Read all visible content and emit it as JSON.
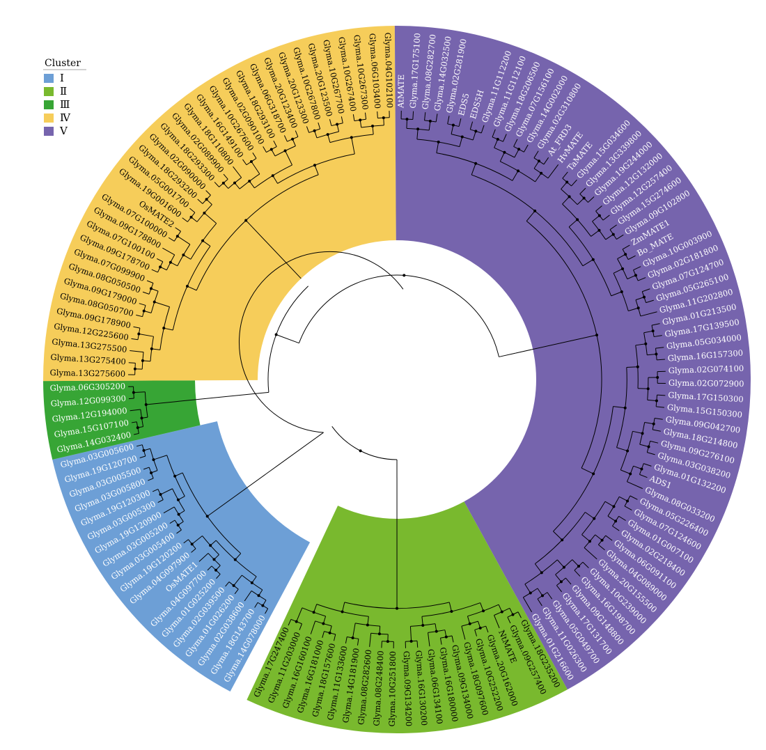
{
  "legend": {
    "title": "Cluster",
    "items": [
      {
        "label": "Ⅰ",
        "color": "#6d9fd6"
      },
      {
        "label": "Ⅱ",
        "color": "#79b92e"
      },
      {
        "label": "Ⅲ",
        "color": "#37a535"
      },
      {
        "label": "Ⅳ",
        "color": "#f6cd5a"
      },
      {
        "label": "Ⅴ",
        "color": "#7664ad"
      }
    ]
  },
  "clusters": [
    {
      "id": "I",
      "color": "#6d9fd6",
      "text_color": "#ffffff",
      "leaves": [
        "Glyma.14G078000",
        "Glyma.18G143700",
        "Glyma.02G038600",
        "Glyma.01G026200",
        "Glyma.02G039500",
        "Glyma.01G025200",
        "Glyma.04G097700",
        "OsMATE1",
        "Glyma.04G097900",
        "Glyma.19G120200",
        "Glyma.03G005400",
        "Glyma.03G005200",
        "Glyma.19G120900",
        "Glyma.03G005300",
        "Glyma.19G120300",
        "Glyma.03G005800",
        "Glyma.03G005500",
        "Glyma.19G120700",
        "Glyma.03G005600"
      ]
    },
    {
      "id": "III",
      "color": "#37a535",
      "text_color": "#ffffff",
      "leaves": [
        "Glyma.14G032400",
        "Glyma.15G107100",
        "Glyma.12G194000",
        "Glyma.12G099300",
        "Glyma.06G305200"
      ]
    },
    {
      "id": "IV",
      "color": "#f6cd5a",
      "text_color": "#000000",
      "leaves": [
        "Glyma.13G275600",
        "Glyma.13G275400",
        "Glyma.13G275500",
        "Glyma.12G225600",
        "Glyma.09G178900",
        "Glyma.08G050700",
        "Glyma.09G179000",
        "Glyma.08G050500",
        "Glyma.07G099900",
        "Glyma.09G178700",
        "Glyma.07G100100",
        "Glyma.09G178800",
        "Glyma.07G100000",
        "OsMATE2",
        "Glyma.19G001600",
        "Glyma.05G001700",
        "Glyma.18G293200",
        "Glyma.02G090000",
        "Glyma.18G293300",
        "Glyma.02G089900",
        "Glyma.18G110800",
        "Glyma.16G149100",
        "Glyma.10G267600",
        "Glyma.02G090100",
        "Glyma.18G293100",
        "Glyma.06G318700",
        "Glyma.20G123400",
        "Glyma.20G123300",
        "Glyma.10G267800",
        "Glyma.20G123500",
        "Glyma.10G267700",
        "Glyma.10G267400",
        "Glyma.10G267300",
        "Glyma.06G103400",
        "Glyma.04G102100"
      ]
    },
    {
      "id": "V",
      "color": "#7664ad",
      "text_color": "#ffffff",
      "leaves": [
        "AtMATE",
        "Glyma.17G175100",
        "Glyma.08G282700",
        "Glyma.14G032500",
        "Glyma.02G281900",
        "EDS5",
        "EDS5H",
        "Glyma.11G112200",
        "Glyma.11G112100",
        "Glyma.18G206500",
        "Glyma.07G156100",
        "Glyma.14G002000",
        "Glyma.02G310800",
        "At_FRD3",
        "HvMATE",
        "TaMATE",
        "Glyma.15G034600",
        "Glyma.13G339800",
        "Glyma.19G244000",
        "Glyma.12G132000",
        "Glyma.12G257400",
        "Glyma.15G274600",
        "Glyma.09G102800",
        "ZmMATE1",
        "Bo_MATE",
        "Glyma.10G003900",
        "Glyma.02G181800",
        "Glyma.07G124700",
        "Glyma.05G265100",
        "Glyma.11G202800",
        "Glyma.01G213500",
        "Glyma.17G139500",
        "Glyma.05G034000",
        "Glyma.16G157300",
        "Glyma.02G074100",
        "Glyma.02G072900",
        "Glyma.17G150300",
        "Glyma.15G150300",
        "Glyma.09G042700",
        "Glyma.18G214800",
        "Glyma.09G276100",
        "Glyma.03G038200",
        "Glyma.01G132200",
        "ADS1",
        "Glyma.08G033200",
        "Glyma.05G226400",
        "Glyma.07G124600",
        "Glyma.01G007100",
        "Glyma.02G218400",
        "Glyma.06G091100",
        "Glyma.04G089000",
        "Glyma.20G155500",
        "Glyma.10G239000",
        "Glyma.16G198700",
        "Glyma.09G148800",
        "Glyma.17G131700",
        "Glyma.05G049700",
        "Glyma.11G026300",
        "Glyma.01G216600"
      ]
    },
    {
      "id": "II",
      "color": "#79b92e",
      "text_color": "#000000",
      "leaves": [
        "Glyma.18G235200",
        "Glyma.09G257400",
        "NtMATE",
        "Glyma.20G162000",
        "Glyma.10G252200",
        "Glyma.18G097600",
        "Glyma.09G134000",
        "Glyma.16G180000",
        "Glyma.06G134100",
        "Glyma.16G130200",
        "Glyma.09G134200",
        "Glyma.10G251800",
        "Glyma.08G248400",
        "Glyma.08G282600",
        "Glyma.14G181900",
        "Glyma.11G133600",
        "Glyma.18G157600",
        "Glyma.16G181000",
        "Glyma.16G160100",
        "Glyma.11G203000",
        "Glyma.17G247400"
      ]
    }
  ]
}
